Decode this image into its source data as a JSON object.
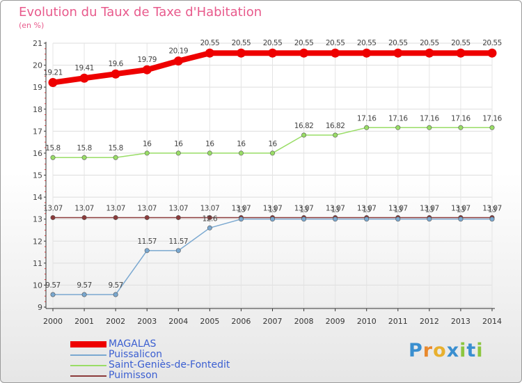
{
  "title": "Evolution du Taux de Taxe d'Habitation",
  "subtitle": "(en %)",
  "logo": {
    "letters": [
      "P",
      "r",
      "o",
      "x",
      "i",
      "t",
      "i"
    ],
    "colors": [
      "#3a8fd0",
      "#e8892e",
      "#e8b02e",
      "#3a8fd0",
      "#8cc63f",
      "#3a8fd0",
      "#8cc63f"
    ]
  },
  "chart_data": {
    "type": "line",
    "x": [
      "2000",
      "2001",
      "2002",
      "2003",
      "2004",
      "2005",
      "2006",
      "2007",
      "2008",
      "2009",
      "2010",
      "2011",
      "2012",
      "2013",
      "2014"
    ],
    "ylim": [
      9,
      21
    ],
    "yticks": [
      "9",
      "10",
      "11",
      "12",
      "13",
      "14",
      "15",
      "16",
      "17",
      "18",
      "19",
      "20",
      "21"
    ],
    "grid": true,
    "series": [
      {
        "name": "MAGALAS",
        "color": "#ee0000",
        "values": [
          19.21,
          19.41,
          19.6,
          19.79,
          20.19,
          20.55,
          20.55,
          20.55,
          20.55,
          20.55,
          20.55,
          20.55,
          20.55,
          20.55,
          20.55
        ],
        "labels": [
          "19.21",
          "19.41",
          "19.6",
          "19.79",
          "20.19",
          "20.55",
          "20.55",
          "20.55",
          "20.55",
          "20.55",
          "20.55",
          "20.55",
          "20.55",
          "20.55",
          "20.55"
        ]
      },
      {
        "name": "Puissalicon",
        "color": "#7aa8d0",
        "values": [
          9.57,
          9.57,
          9.57,
          11.57,
          11.57,
          12.6,
          13,
          13,
          13,
          13,
          13,
          13,
          13,
          13,
          13
        ],
        "labels": [
          "9.57",
          "9.57",
          "9.57",
          "11.57",
          "11.57",
          "12.6",
          "13",
          "13",
          "13",
          "13",
          "13",
          "13",
          "13",
          "13",
          "13"
        ]
      },
      {
        "name": "Saint-Geniès-de-Fontedit",
        "color": "#99dd66",
        "values": [
          15.8,
          15.8,
          15.8,
          16,
          16,
          16,
          16,
          16,
          16.82,
          16.82,
          17.16,
          17.16,
          17.16,
          17.16,
          17.16
        ],
        "labels": [
          "15.8",
          "15.8",
          "15.8",
          "16",
          "16",
          "16",
          "16",
          "16",
          "16.82",
          "16.82",
          "17.16",
          "17.16",
          "17.16",
          "17.16",
          "17.16"
        ]
      },
      {
        "name": "Puimisson",
        "color": "#8b3a3a",
        "values": [
          13.07,
          13.07,
          13.07,
          13.07,
          13.07,
          13.07,
          13.07,
          13.07,
          13.07,
          13.07,
          13.07,
          13.07,
          13.07,
          13.07,
          13.07
        ],
        "labels": [
          "13.07",
          "13.07",
          "13.07",
          "13.07",
          "13.07",
          "13.07",
          "13.07",
          "13.07",
          "13.07",
          "13.07",
          "13.07",
          "13.07",
          "13.07",
          "13.07",
          "13.07"
        ]
      }
    ]
  }
}
